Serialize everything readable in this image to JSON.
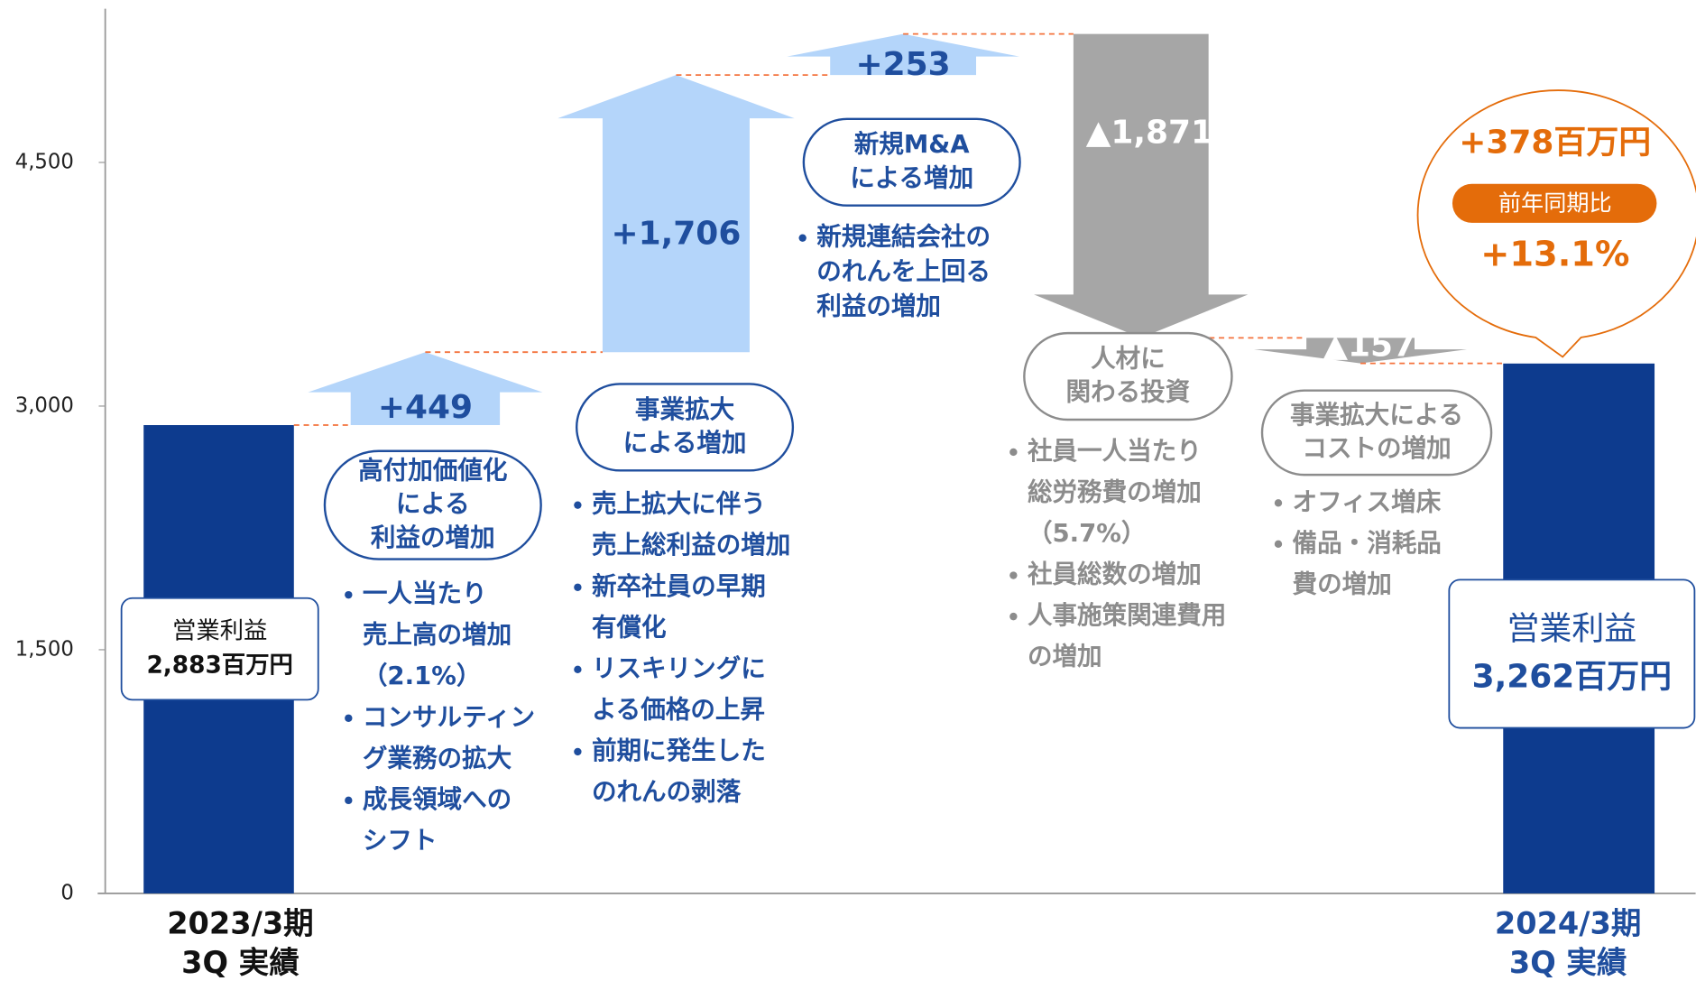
{
  "chart_data": {
    "type": "waterfall",
    "ylim": [
      0,
      5500
    ],
    "yticks": [
      0,
      {
        "value": 1500,
        "label": "1,500"
      },
      {
        "value": 3000,
        "label": "3,000"
      },
      {
        "value": 4500,
        "label": "4,500"
      }
    ],
    "categories": [
      "2023/3期\n3Q 実績",
      "高付加価値化\nによる\n利益の増加",
      "事業拡大\nによる増加",
      "新規M&A\nによる増加",
      "人材に\n関わる投資",
      "事業拡大による\nコストの増加",
      "2024/3期\n3Q 実績"
    ],
    "measures": [
      "total",
      "increase",
      "increase",
      "increase",
      "decrease",
      "decrease",
      "total"
    ],
    "values": [
      2883,
      449,
      1706,
      253,
      -1871,
      -157,
      3262
    ],
    "value_labels": [
      "2,883百万円",
      "+449",
      "+1,706",
      "+253",
      "▲1,871",
      "▲157",
      "3,262百万円"
    ],
    "total_caption": "営業利益",
    "notes": [
      null,
      [
        "一人当たり\n売上高の増加\n（2.1%）",
        "コンサルティン\nグ業務の拡大",
        "成長領域への\nシフト"
      ],
      [
        "売上拡大に伴う\n売上総利益の増加",
        "新卒社員の早期\n有償化",
        "リスキリングに\nよる価格の上昇",
        "前期に発生した\nのれんの剥落"
      ],
      [
        "新規連結会社の\nのれんを上回る\n利益の増加"
      ],
      [
        "社員一人当たり\n総労務費の増加\n（5.7%）",
        "社員総数の増加",
        "人事施策関連費用\nの増加"
      ],
      [
        "オフィス増床",
        "備品・消耗品\n費の増加"
      ],
      null
    ],
    "colors": {
      "total": "#0d3b8e",
      "increase": "#b4d5fa",
      "decrease": "#a6a6a6"
    },
    "annotation": {
      "change": "+378百万円",
      "caption": "前年同期比",
      "rate": "+13.1%",
      "color": "#e46c0a"
    }
  }
}
